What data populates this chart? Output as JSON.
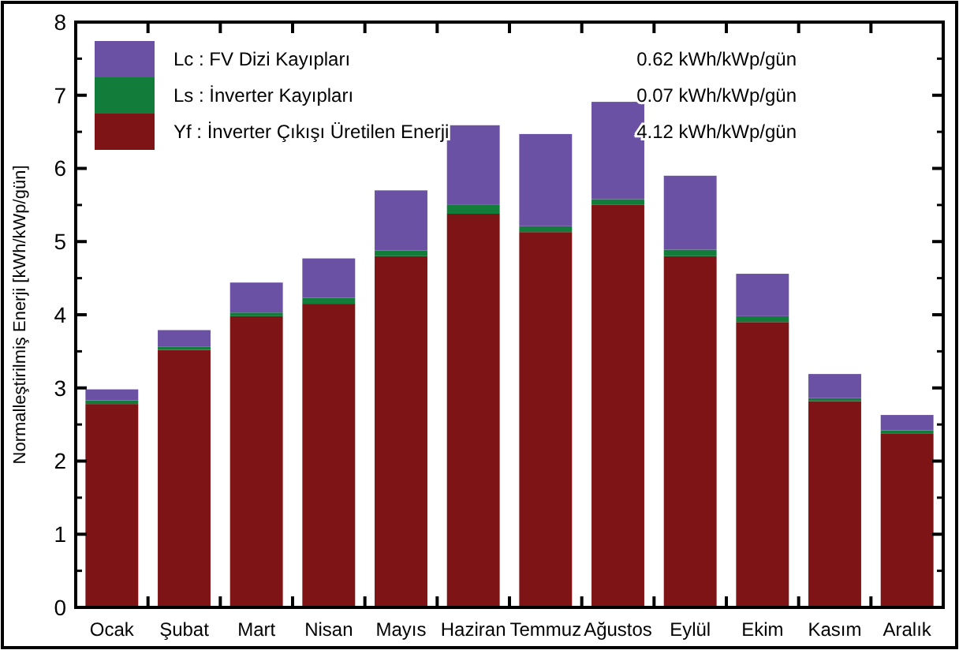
{
  "chart_data": {
    "type": "bar",
    "stacked": true,
    "ylabel": "Normalleştirilmiş Enerji [kWh/kWp/gün]",
    "categories": [
      "Ocak",
      "Şubat",
      "Mart",
      "Nisan",
      "Mayıs",
      "Haziran",
      "Temmuz",
      "Ağustos",
      "Eylül",
      "Ekim",
      "Kasım",
      "Aralık"
    ],
    "series": [
      {
        "name": "Yf : İnverter Çıkışı Üretilen Enerji",
        "color": "#7f1416",
        "values": [
          2.78,
          3.52,
          3.98,
          4.15,
          4.8,
          5.38,
          5.13,
          5.5,
          4.8,
          3.9,
          2.82,
          2.38
        ]
      },
      {
        "name": "Ls : İnverter Kayıpları",
        "color": "#127c3a",
        "values": [
          0.05,
          0.04,
          0.05,
          0.08,
          0.08,
          0.12,
          0.08,
          0.08,
          0.09,
          0.08,
          0.04,
          0.04
        ]
      },
      {
        "name": "Lc : FV Dizi Kayıpları",
        "color": "#6a51a3",
        "values": [
          0.15,
          0.23,
          0.41,
          0.54,
          0.82,
          1.09,
          1.26,
          1.33,
          1.01,
          0.58,
          0.33,
          0.21
        ]
      }
    ],
    "annotations": [
      "4.12 kWh/kWp/gün",
      "0.07 kWh/kWp/gün",
      "0.62 kWh/kWp/gün"
    ],
    "ylim": [
      0,
      8
    ],
    "yticks": [
      0,
      1,
      2,
      3,
      4,
      5,
      6,
      7,
      8
    ],
    "grid": false,
    "legend": "top left"
  }
}
